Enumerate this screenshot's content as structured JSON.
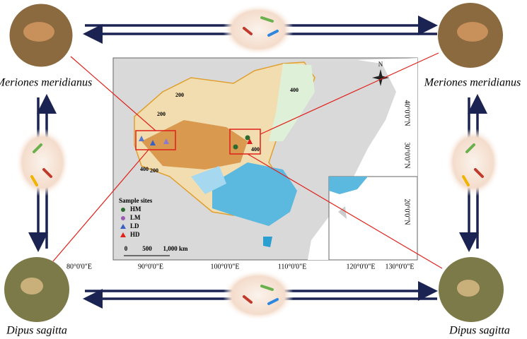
{
  "species": {
    "top_left": "Meriones meridianus",
    "top_right": "Meriones meridianus",
    "bottom_left": "Dipus sagitta",
    "bottom_right": "Dipus sagitta"
  },
  "map": {
    "longitude_labels": [
      "80°0'0\"E",
      "90°0'0\"E",
      "100°0'0\"E",
      "110°0'0\"E",
      "120°0'0\"E",
      "130°0'0\"E"
    ],
    "latitude_labels": [
      "40°0'0\"N",
      "30°0'0\"N",
      "20°0'0\"N"
    ],
    "contour_labels": [
      "200",
      "200",
      "400",
      "400",
      "200",
      "400"
    ],
    "compass": "N",
    "legend": {
      "title": "Sample sites",
      "items": [
        "HM",
        "LM",
        "LD",
        "HD"
      ]
    },
    "scale_bar": [
      "0",
      "500",
      "1,000 km"
    ]
  }
}
